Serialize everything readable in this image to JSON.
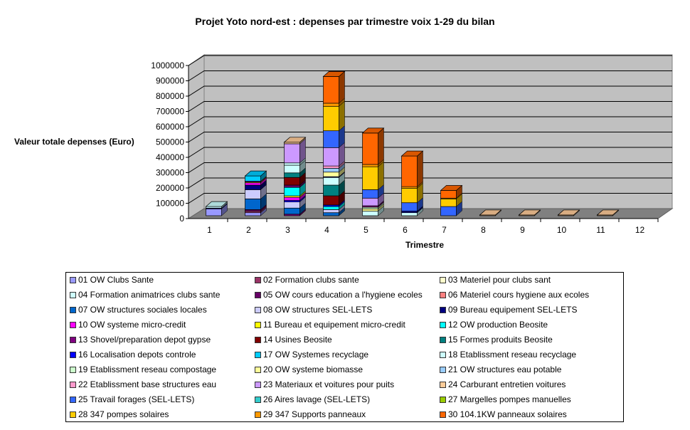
{
  "chart_data": {
    "type": "bar",
    "stacked": true,
    "style": "3d-stacked-column",
    "title": "Projet Yoto nord-est : depenses par trimestre voix 1-29 du bilan",
    "xlabel": "Trimestre",
    "ylabel": "Valeur totale depenses (Euro)",
    "ylim": [
      0,
      1000000
    ],
    "yticks": [
      "0",
      "100000",
      "200000",
      "300000",
      "400000",
      "500000",
      "600000",
      "700000",
      "800000",
      "900000",
      "1000000"
    ],
    "categories": [
      "1",
      "2",
      "3",
      "4",
      "5",
      "6",
      "7",
      "8",
      "9",
      "10",
      "11",
      "12"
    ],
    "legend_position": "bottom",
    "series": [
      {
        "name": "01 OW Clubs Sante",
        "color": "#9999FF"
      },
      {
        "name": "02 Formation clubs sante",
        "color": "#993366"
      },
      {
        "name": "03 Materiel pour clubs sant",
        "color": "#FFFFCC"
      },
      {
        "name": "04 Formation animatrices clubs sante",
        "color": "#CCFFFF"
      },
      {
        "name": "05 OW cours education a l'hygiene ecoles",
        "color": "#660066"
      },
      {
        "name": "06 Materiel cours hygiene aux ecoles",
        "color": "#FF8080"
      },
      {
        "name": "07 OW structures sociales locales",
        "color": "#0066CC"
      },
      {
        "name": "08 OW structures SEL-LETS",
        "color": "#CCCCFF"
      },
      {
        "name": "09 Bureau equipement SEL-LETS",
        "color": "#000080"
      },
      {
        "name": "10 OW systeme micro-credit",
        "color": "#FF00FF"
      },
      {
        "name": "11 Bureau et equipement micro-credit",
        "color": "#FFFF00"
      },
      {
        "name": "12 OW  production Beosite",
        "color": "#00FFFF"
      },
      {
        "name": "13 Shovel/preparation depot gypse",
        "color": "#800080"
      },
      {
        "name": "14 Usines Beosite",
        "color": "#800000"
      },
      {
        "name": "15 Formes produits Beosite",
        "color": "#008080"
      },
      {
        "name": "16 Localisation depots controle",
        "color": "#0000FF"
      },
      {
        "name": "17 OW Systemes recyclage",
        "color": "#00CCFF"
      },
      {
        "name": "18 Etablissment reseau recyclage",
        "color": "#CCFFFF"
      },
      {
        "name": "19 Etablissment reseau compostage",
        "color": "#CCFFCC"
      },
      {
        "name": "20 OW systeme biomasse",
        "color": "#FFFF99"
      },
      {
        "name": "21 OW structures eau potable",
        "color": "#99CCFF"
      },
      {
        "name": "22 Etablissment base structures eau",
        "color": "#FF99CC"
      },
      {
        "name": "23 Materiaux et voitures pour puits",
        "color": "#CC99FF"
      },
      {
        "name": "24 Carburant entretien voitures",
        "color": "#FFCC99"
      },
      {
        "name": "25 Travail forages (SEL-LETS)",
        "color": "#3366FF"
      },
      {
        "name": "26 Aires lavage (SEL-LETS)",
        "color": "#33CCCC"
      },
      {
        "name": "27 Margelles pompes manuelles",
        "color": "#99CC00"
      },
      {
        "name": "28 347 pompes solaires",
        "color": "#FFCC00"
      },
      {
        "name": "29 347 Supports panneaux",
        "color": "#FF9900"
      },
      {
        "name": "30 104.1KW panneaux solaires",
        "color": "#FF6600"
      }
    ],
    "stacks": [
      [
        [
          1,
          45000
        ],
        [
          9,
          5000
        ],
        [
          18,
          10000
        ]
      ],
      [
        [
          1,
          20000
        ],
        [
          2,
          10000
        ],
        [
          5,
          10000
        ],
        [
          7,
          70000
        ],
        [
          8,
          60000
        ],
        [
          9,
          30000
        ],
        [
          10,
          15000
        ],
        [
          11,
          5000
        ],
        [
          13,
          5000
        ],
        [
          17,
          35000
        ]
      ],
      [
        [
          13,
          10000
        ],
        [
          7,
          40000
        ],
        [
          8,
          40000
        ],
        [
          16,
          10000
        ],
        [
          10,
          20000
        ],
        [
          11,
          10000
        ],
        [
          12,
          55000
        ],
        [
          5,
          15000
        ],
        [
          14,
          50000
        ],
        [
          15,
          30000
        ],
        [
          18,
          50000
        ],
        [
          4,
          15000
        ],
        [
          23,
          125000
        ],
        [
          24,
          10000
        ]
      ],
      [
        [
          7,
          20000
        ],
        [
          8,
          20000
        ],
        [
          12,
          20000
        ],
        [
          16,
          10000
        ],
        [
          14,
          60000
        ],
        [
          15,
          70000
        ],
        [
          18,
          50000
        ],
        [
          9,
          5000
        ],
        [
          20,
          30000
        ],
        [
          21,
          25000
        ],
        [
          22,
          15000
        ],
        [
          23,
          120000
        ],
        [
          25,
          110000
        ],
        [
          28,
          160000
        ],
        [
          29,
          20000
        ],
        [
          30,
          175000
        ]
      ],
      [
        [
          18,
          30000
        ],
        [
          20,
          15000
        ],
        [
          19,
          10000
        ],
        [
          5,
          10000
        ],
        [
          23,
          50000
        ],
        [
          25,
          55000
        ],
        [
          28,
          150000
        ],
        [
          29,
          15000
        ],
        [
          30,
          205000
        ]
      ],
      [
        [
          18,
          20000
        ],
        [
          9,
          10000
        ],
        [
          25,
          55000
        ],
        [
          28,
          95000
        ],
        [
          29,
          10000
        ],
        [
          30,
          200000
        ]
      ],
      [
        [
          25,
          60000
        ],
        [
          28,
          50000
        ],
        [
          29,
          5000
        ],
        [
          30,
          50000
        ]
      ],
      [
        [
          24,
          5000
        ]
      ],
      [
        [
          24,
          5000
        ]
      ],
      [
        [
          24,
          5000
        ]
      ],
      [
        [
          24,
          5000
        ]
      ],
      []
    ]
  }
}
